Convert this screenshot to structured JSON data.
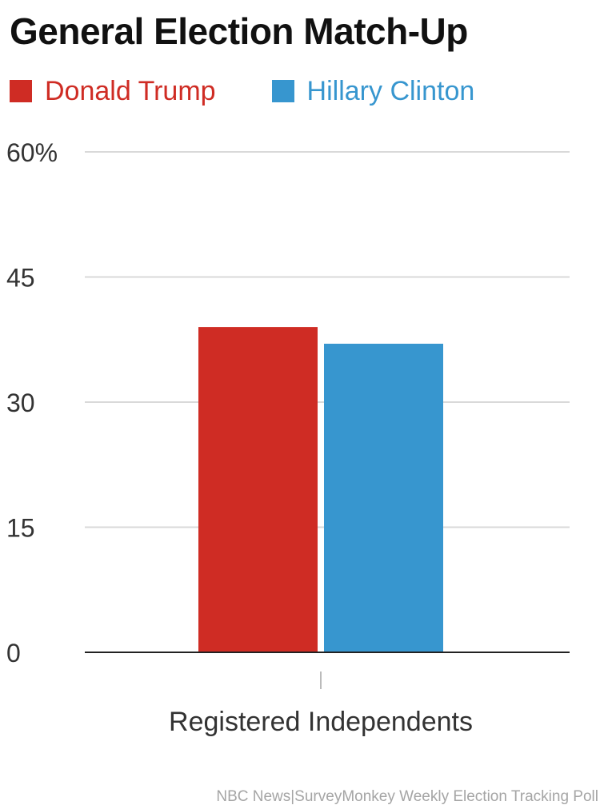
{
  "colors": {
    "trump": "#cf2c24",
    "clinton": "#3796cf",
    "grid": "#d9d9d9",
    "axis": "#222222",
    "tick_text": "#333333"
  },
  "chart_data": {
    "type": "bar",
    "title": "General Election Match-Up",
    "categories": [
      "Registered Independents"
    ],
    "series": [
      {
        "name": "Donald Trump",
        "values": [
          39
        ],
        "color": "#cf2c24"
      },
      {
        "name": "Hillary Clinton",
        "values": [
          37
        ],
        "color": "#3796cf"
      }
    ],
    "ylim": [
      0,
      60
    ],
    "yticks": [
      0,
      15,
      30,
      45,
      60
    ],
    "ytick_labels": [
      "0",
      "15",
      "30",
      "45",
      "60%"
    ],
    "xlabel": "",
    "ylabel": "",
    "grid": true,
    "legend_position": "top-left",
    "source": "NBC News|SurveyMonkey Weekly Election Tracking Poll"
  }
}
